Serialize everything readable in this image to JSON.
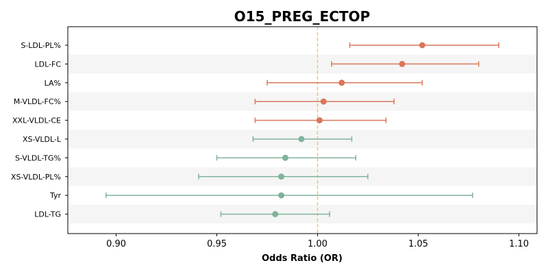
{
  "chart_data": {
    "type": "forest",
    "title": "O15_PREG_ECTOP",
    "xlabel": "Odds Ratio (OR)",
    "xlim": [
      0.876,
      1.109
    ],
    "xticks": [
      "0.90",
      "0.95",
      "1.00",
      "1.05",
      "1.10"
    ],
    "reference_line": 1.0,
    "colors": {
      "positive": "#d9775a",
      "negative": "#7fb39a",
      "reference": "#f3c27a",
      "band": "#f5f5f5"
    },
    "items": [
      {
        "label": "S-LDL-PL%",
        "or": 1.052,
        "lower": 1.016,
        "upper": 1.09
      },
      {
        "label": "LDL-FC",
        "or": 1.042,
        "lower": 1.007,
        "upper": 1.08
      },
      {
        "label": "LA%",
        "or": 1.012,
        "lower": 0.975,
        "upper": 1.052
      },
      {
        "label": "M-VLDL-FC%",
        "or": 1.003,
        "lower": 0.969,
        "upper": 1.038
      },
      {
        "label": "XXL-VLDL-CE",
        "or": 1.001,
        "lower": 0.969,
        "upper": 1.034
      },
      {
        "label": "XS-VLDL-L",
        "or": 0.992,
        "lower": 0.968,
        "upper": 1.017
      },
      {
        "label": "S-VLDL-TG%",
        "or": 0.984,
        "lower": 0.95,
        "upper": 1.019
      },
      {
        "label": "XS-VLDL-PL%",
        "or": 0.982,
        "lower": 0.941,
        "upper": 1.025
      },
      {
        "label": "Tyr",
        "or": 0.982,
        "lower": 0.895,
        "upper": 1.077
      },
      {
        "label": "LDL-TG",
        "or": 0.979,
        "lower": 0.952,
        "upper": 1.006
      }
    ]
  }
}
